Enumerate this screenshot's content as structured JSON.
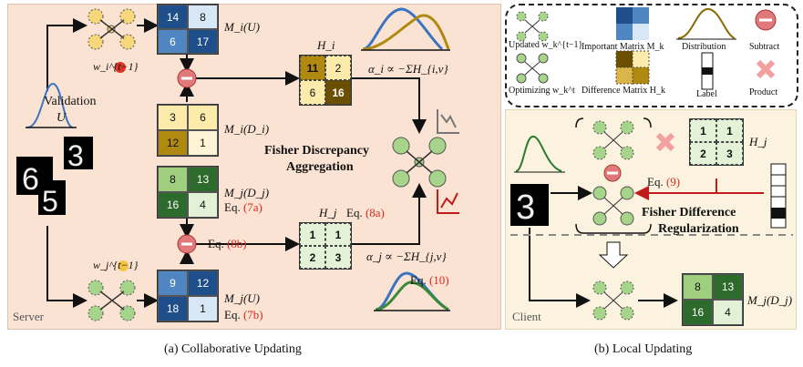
{
  "panel_a": {
    "server_label": "Server",
    "validation_label": "Validation",
    "validation_var": "U",
    "mi_u": {
      "label": "M_i(U)",
      "values": [
        "14",
        "8",
        "6",
        "17"
      ]
    },
    "mi_di": {
      "label": "M_i(D_i)",
      "values": [
        "3",
        "6",
        "12",
        "1"
      ]
    },
    "mj_dj": {
      "label": "M_j(D_j)",
      "values": [
        "8",
        "13",
        "16",
        "4"
      ]
    },
    "mj_u": {
      "label": "M_j(U)",
      "values": [
        "9",
        "12",
        "18",
        "1"
      ]
    },
    "hi": {
      "label": "H_i",
      "values": [
        "11",
        "2",
        "6",
        "16"
      ]
    },
    "hj": {
      "label": "H_j",
      "values": [
        "1",
        "1",
        "2",
        "3"
      ]
    },
    "alpha_i": "α_i ∝ −ΣH_{i,v}",
    "alpha_j": "α_j ∝ −ΣH_{j,v}",
    "fisher_title_1": "Fisher Discrepancy",
    "fisher_title_2": "Aggregation",
    "weights_i": "w_i^{t−1}",
    "weights_j": "w_j^{t−1}",
    "eq_prefix": "Eq.",
    "eq_7a": "(7a)",
    "eq_7b": "(7b)",
    "eq_8a": "(8a)",
    "eq_8b": "(8b)",
    "eq_10": "(10)",
    "caption": "(a) Collaborative Updating"
  },
  "legend": {
    "updated": "Updated w_k^{t−1}",
    "optimizing": "Optimizing w_k^t",
    "important": "Important Matrix M_k",
    "difference": "Difference Matrix H_k",
    "distribution": "Distribution",
    "label": "Label",
    "subtract": "Subtract",
    "product": "Product"
  },
  "panel_b": {
    "client_label": "Client",
    "hj": {
      "label": "H_j",
      "values": [
        "1",
        "1",
        "2",
        "3"
      ]
    },
    "eq_prefix": "Eq.",
    "eq_9": "(9)",
    "fisher_title_1": "Fisher Difference",
    "fisher_title_2": "Regularization",
    "mj_dj": {
      "label": "M_j(D_j)",
      "values": [
        "8",
        "13",
        "16",
        "4"
      ]
    },
    "caption": "(b) Local Updating"
  },
  "colors": {
    "blue_dark": "#1f4f8a",
    "blue_mid": "#4f86c2",
    "blue_light": "#d7e7f6",
    "gold_dark": "#6b4f00",
    "gold_mid": "#b08a10",
    "gold_light": "#fcebaa",
    "green_dark": "#2c6b2c",
    "green_mid": "#9fce7f",
    "green_light": "#e3f2d6",
    "subtract": "#e07a7a",
    "product": "#f2b3b3",
    "ref": "#d62b1f"
  }
}
